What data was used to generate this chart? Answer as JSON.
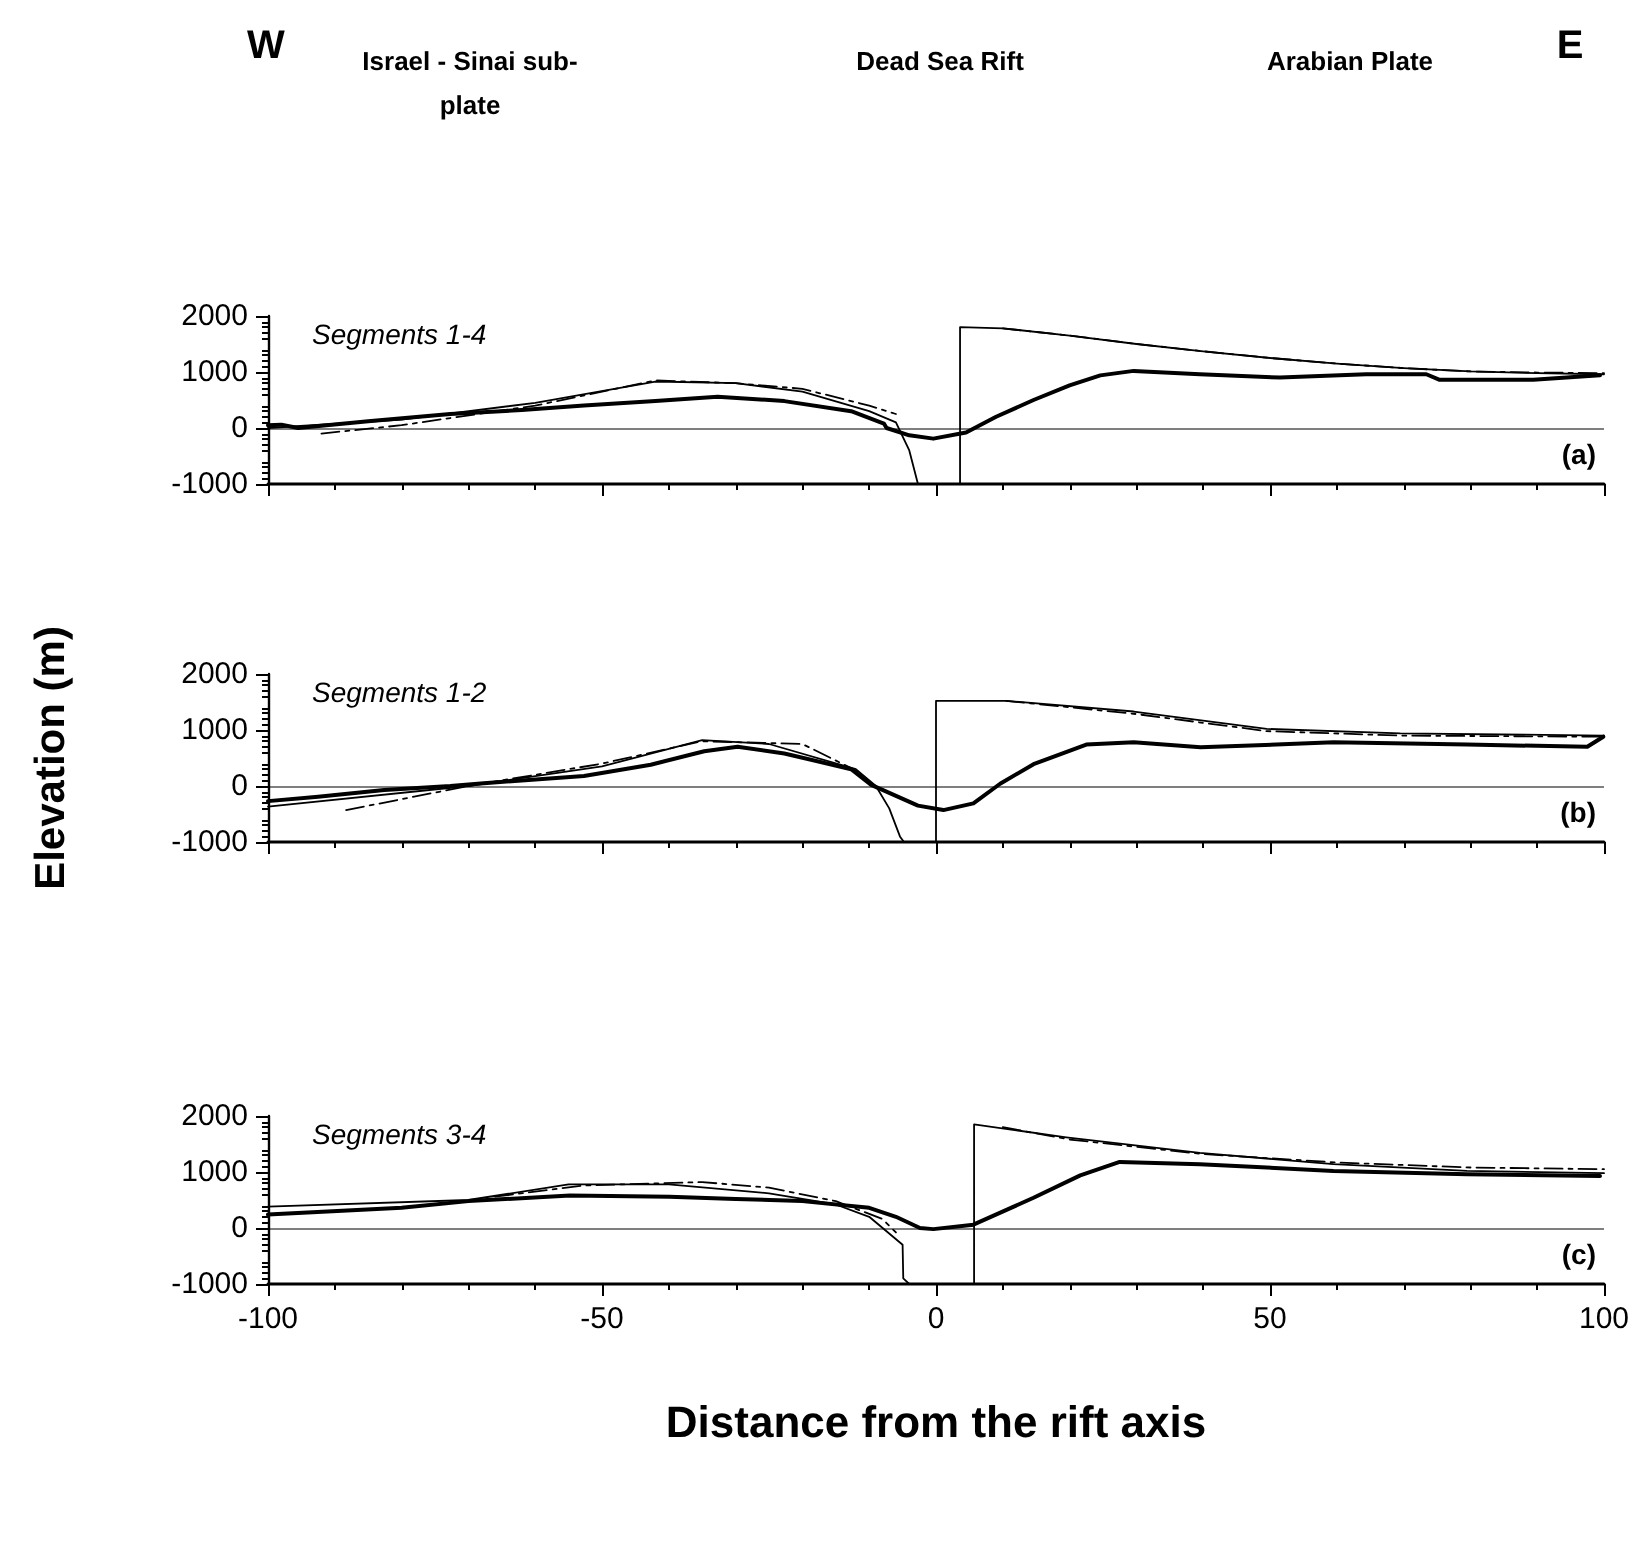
{
  "chart_data": [
    {
      "type": "line",
      "annotations": [
        "W",
        "Israel - Sinai sub-plate",
        "Dead Sea Rift",
        "Arabian Plate",
        "E",
        "Segments 1-4",
        "(a)"
      ],
      "xlim": [
        -100,
        100
      ],
      "xticks": [
        -100,
        -50,
        0,
        50,
        100
      ],
      "ylim": [
        -1000,
        2000
      ],
      "yticks": [
        -1000,
        0,
        1000,
        2000
      ],
      "tick_labels": "y",
      "grid": false,
      "marker": "none",
      "ref_lines": [
        {
          "axis": "y",
          "value": 0,
          "color": "#000000"
        }
      ],
      "series": [
        {
          "color": "#000000",
          "line_style": "solid",
          "x": [
            -100,
            -98,
            -95.5,
            -85,
            -72.7,
            -62,
            -52.7,
            -42,
            -32.7,
            -22.7,
            -12.7,
            -7.8,
            -7.4,
            -4,
            -0.4,
            4.5,
            9,
            14.6,
            20,
            24.6,
            29.6,
            39.5,
            51.5,
            64.4,
            73.4,
            75.4,
            89.4,
            99.4
          ],
          "values": [
            50,
            60,
            0,
            120,
            250,
            320,
            400,
            480,
            560,
            480,
            300,
            80,
            0,
            -130,
            -190,
            -80,
            200,
            500,
            760,
            940,
            1020,
            960,
            900,
            960,
            960,
            860,
            860,
            940
          ]
        },
        {
          "color": "#000000",
          "line_style": "solid",
          "x": [
            -100,
            -80,
            -60,
            -42,
            -30,
            -20,
            -10,
            -6,
            -4,
            -2.7,
            3.6,
            3.6,
            10,
            20,
            30,
            40,
            50,
            60,
            70,
            80,
            90,
            100
          ],
          "values": [
            0,
            150,
            450,
            830,
            800,
            650,
            300,
            100,
            -400,
            -1000,
            -1000,
            1800,
            1780,
            1650,
            1500,
            1370,
            1250,
            1150,
            1070,
            1010,
            980,
            960
          ]
        },
        {
          "color": "#000000",
          "line_style": "dashed",
          "x": [
            -92,
            -80,
            -60,
            -42,
            -30,
            -20,
            -10,
            -6,
            2,
            10,
            20,
            30,
            40,
            50,
            60,
            70,
            80,
            90,
            100
          ],
          "values": [
            -100,
            50,
            400,
            850,
            800,
            700,
            400,
            250,
            null,
            1780,
            1650,
            1500,
            1370,
            1250,
            1150,
            1070,
            1010,
            990,
            980
          ]
        }
      ]
    },
    {
      "type": "line",
      "ylabel": "Elevation (m)",
      "annotations": [
        "Segments 1-2",
        "(b)"
      ],
      "xlim": [
        -100,
        100
      ],
      "xticks": [
        -100,
        -50,
        0,
        50,
        100
      ],
      "ylim": [
        -1000,
        2000
      ],
      "yticks": [
        -1000,
        0,
        1000,
        2000
      ],
      "tick_labels": "y",
      "grid": false,
      "marker": "none",
      "ref_lines": [
        {
          "axis": "y",
          "value": 0,
          "color": "#000000"
        }
      ],
      "series": [
        {
          "color": "#000000",
          "line_style": "solid",
          "x": [
            -100,
            -92.5,
            -82.6,
            -72.7,
            -67.7,
            -52.7,
            -42.7,
            -34.7,
            -29.7,
            -22.7,
            -12.7,
            -9.7,
            -2.7,
            1.1,
            5.6,
            9.6,
            14.6,
            22.5,
            29.6,
            39.6,
            59.5,
            79.5,
            97.5,
            99.9
          ],
          "values": [
            -270,
            -190,
            -70,
            0,
            50,
            180,
            380,
            620,
            700,
            580,
            300,
            20,
            -350,
            -430,
            -310,
            40,
            390,
            740,
            780,
            690,
            780,
            740,
            700,
            880
          ]
        },
        {
          "color": "#000000",
          "line_style": "solid",
          "x": [
            -100,
            -70,
            -50,
            -35,
            -25,
            -12,
            -9,
            -7,
            -5.4,
            -4.8,
            0,
            0,
            10.5,
            29.6,
            49.5,
            69.5,
            100
          ],
          "values": [
            -370,
            0,
            350,
            820,
            750,
            300,
            0,
            -400,
            -900,
            -1000,
            -1000,
            1520,
            1520,
            1330,
            1020,
            940,
            900
          ]
        },
        {
          "color": "#000000",
          "line_style": "dashed",
          "x": [
            -88.3,
            -70,
            -50,
            -35,
            -20,
            -11.7,
            0,
            10.5,
            29.6,
            49.5,
            69.5,
            100
          ],
          "values": [
            -430,
            0,
            400,
            800,
            750,
            260,
            null,
            1520,
            1290,
            980,
            900,
            880
          ]
        }
      ]
    },
    {
      "type": "line",
      "xlabel": "Distance from the rift axis",
      "annotations": [
        "Segments 3-4",
        "(c)"
      ],
      "xlim": [
        -100,
        100
      ],
      "xticks": [
        -100,
        -50,
        0,
        50,
        100
      ],
      "ylim": [
        -1000,
        2000
      ],
      "yticks": [
        -1000,
        0,
        1000,
        2000
      ],
      "grid": false,
      "marker": "none",
      "ref_lines": [
        {
          "axis": "y",
          "value": 0,
          "color": "#000000"
        }
      ],
      "series": [
        {
          "color": "#000000",
          "line_style": "solid",
          "x": [
            -100,
            -80,
            -70,
            -54.8,
            -39.9,
            -30,
            -20,
            -10,
            -6,
            -2.4,
            -0.4,
            5.6,
            14.6,
            21.6,
            27.5,
            39.5,
            59.5,
            79.5,
            99.4
          ],
          "values": [
            240,
            360,
            480,
            580,
            560,
            520,
            480,
            360,
            200,
            0,
            -20,
            60,
            540,
            940,
            1180,
            1140,
            1020,
            960,
            930
          ]
        },
        {
          "color": "#000000",
          "line_style": "solid",
          "x": [
            -100,
            -70,
            -55,
            -40,
            -25,
            -15,
            -10,
            -5,
            -4.9,
            -4,
            5.7,
            5.7,
            19.5,
            39.5,
            59.5,
            79.5,
            100
          ],
          "values": [
            380,
            500,
            780,
            780,
            620,
            420,
            200,
            -300,
            -900,
            -1000,
            -1000,
            1850,
            1620,
            1340,
            1140,
            1020,
            980
          ]
        },
        {
          "color": "#000000",
          "line_style": "dashed",
          "x": [
            -66,
            -52.7,
            -35,
            -25,
            -15,
            -8,
            -6,
            2,
            10,
            20,
            40,
            60,
            80,
            100
          ],
          "values": [
            560,
            760,
            820,
            720,
            480,
            160,
            -80,
            null,
            1800,
            1580,
            1320,
            1170,
            1080,
            1050
          ]
        }
      ]
    }
  ]
}
